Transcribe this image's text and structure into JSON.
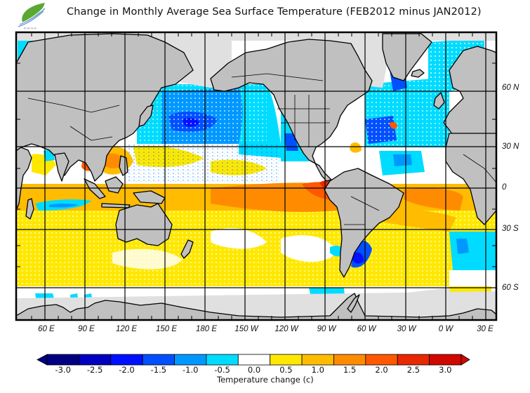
{
  "header": {
    "title": "Change in Monthly Average Sea Surface Temperature (FEB2012 minus JAN2012)",
    "logo_icon": "leaf-logo-icon"
  },
  "map": {
    "projection": "equirectangular",
    "lon_range": [
      30,
      390
    ],
    "lat_range": [
      -75,
      80
    ],
    "x_ticks": [
      "60 E",
      "90 E",
      "120 E",
      "150 E",
      "180 E",
      "150 W",
      "120 W",
      "90 W",
      "60 W",
      "30 W",
      "0 W",
      "30 E"
    ],
    "y_ticks": [
      "60 N",
      "30 N",
      "0",
      "30 S",
      "60 S"
    ],
    "colors": {
      "land": "#c0c0c0",
      "ice": "#e0e0e0",
      "coast": "#000000",
      "grid": "#000000"
    }
  },
  "colorbar": {
    "label": "Temperature change  (c)",
    "ticks": [
      "-3.0",
      "-2.5",
      "-2.0",
      "-1.5",
      "-1.0",
      "-0.5",
      "0.0",
      "0.5",
      "1.0",
      "1.5",
      "2.0",
      "2.5",
      "3.0"
    ],
    "colors": [
      "#000080",
      "#0000c0",
      "#0010ff",
      "#0050ff",
      "#0098ff",
      "#00dcff",
      "#ffffff",
      "#ffe800",
      "#ffbc00",
      "#ff8c00",
      "#ff5800",
      "#e82800",
      "#d00800"
    ],
    "extend": "both"
  }
}
